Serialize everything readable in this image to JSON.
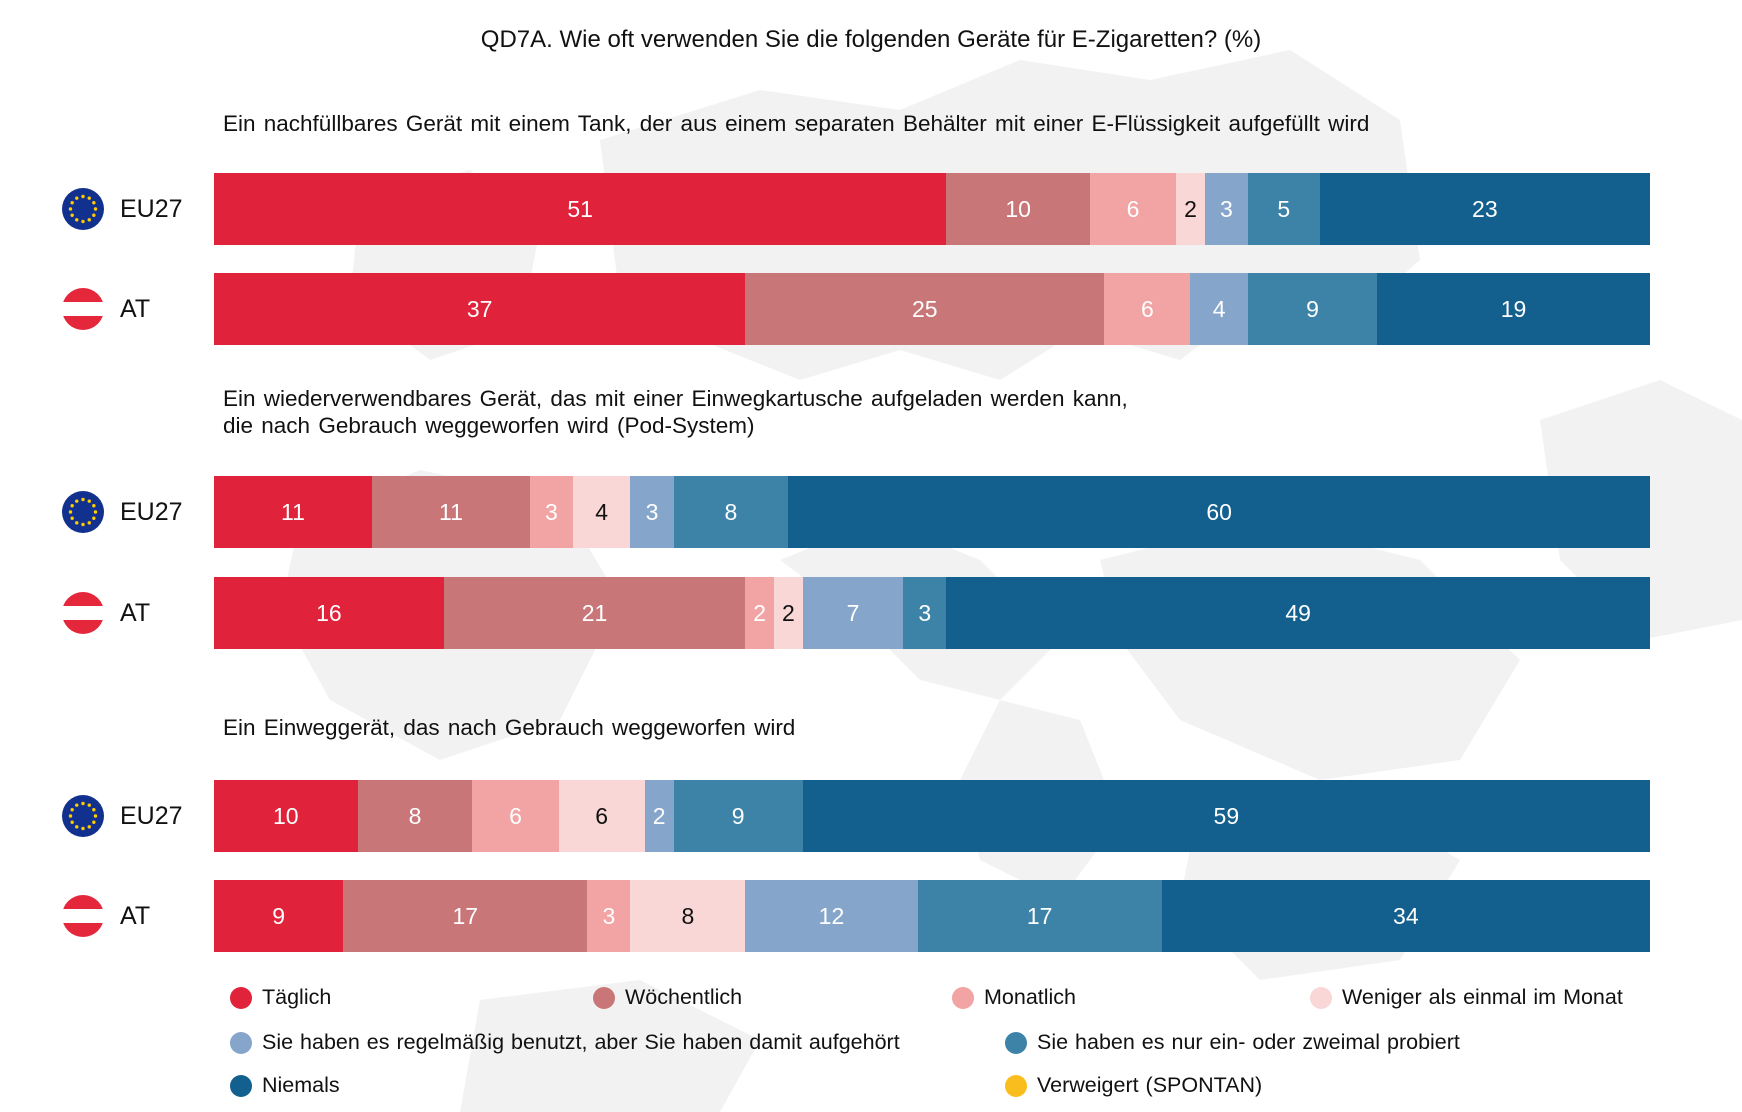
{
  "chart_data": {
    "type": "bar",
    "orientation": "horizontal",
    "stacked": true,
    "title": "QD7A. Wie oft verwenden Sie die folgenden Geräte für E-Zigaretten? (%)",
    "xlim": [
      0,
      100
    ],
    "grid": false,
    "legend_position": "bottom",
    "series": [
      {
        "name": "Täglich",
        "color": "#e0233a"
      },
      {
        "name": "Wöchentlich",
        "color": "#c87678"
      },
      {
        "name": "Monatlich",
        "color": "#f2a3a3"
      },
      {
        "name": "Weniger als einmal im Monat",
        "color": "#f8d7d6"
      },
      {
        "name": "Sie haben es regelmäßig benutzt, aber Sie haben damit aufgehört",
        "color": "#86a5cb"
      },
      {
        "name": "Sie haben es nur ein- oder zweimal probiert",
        "color": "#3d83a8"
      },
      {
        "name": "Niemals",
        "color": "#13608f"
      },
      {
        "name": "Verweigert (SPONTAN)",
        "color": "#f9be1d"
      }
    ],
    "groups": [
      {
        "title_lines": [
          "Ein nachfüllbares Gerät mit einem Tank, der aus einem separaten Behälter mit einer E-Flüssigkeit aufgefüllt wird"
        ],
        "rows": [
          {
            "label": "EU27",
            "flag": "eu-flag-icon",
            "values": [
              51,
              10,
              6,
              2,
              3,
              5,
              23,
              0
            ]
          },
          {
            "label": "AT",
            "flag": "austria-flag-icon",
            "values": [
              37,
              25,
              6,
              0,
              4,
              9,
              19,
              0
            ]
          }
        ]
      },
      {
        "title_lines": [
          "Ein wiederverwendbares Gerät, das mit einer Einwegkartusche aufgeladen werden kann,",
          "die nach Gebrauch weggeworfen wird (Pod-System)"
        ],
        "rows": [
          {
            "label": "EU27",
            "flag": "eu-flag-icon",
            "values": [
              11,
              11,
              3,
              4,
              3,
              8,
              60,
              0
            ]
          },
          {
            "label": "AT",
            "flag": "austria-flag-icon",
            "values": [
              16,
              21,
              2,
              2,
              7,
              3,
              49,
              0
            ]
          }
        ]
      },
      {
        "title_lines": [
          "Ein Einweggerät, das nach Gebrauch weggeworfen wird"
        ],
        "rows": [
          {
            "label": "EU27",
            "flag": "eu-flag-icon",
            "values": [
              10,
              8,
              6,
              6,
              2,
              9,
              59,
              0
            ]
          },
          {
            "label": "AT",
            "flag": "austria-flag-icon",
            "values": [
              9,
              17,
              3,
              8,
              12,
              17,
              34,
              0
            ]
          }
        ]
      }
    ]
  }
}
